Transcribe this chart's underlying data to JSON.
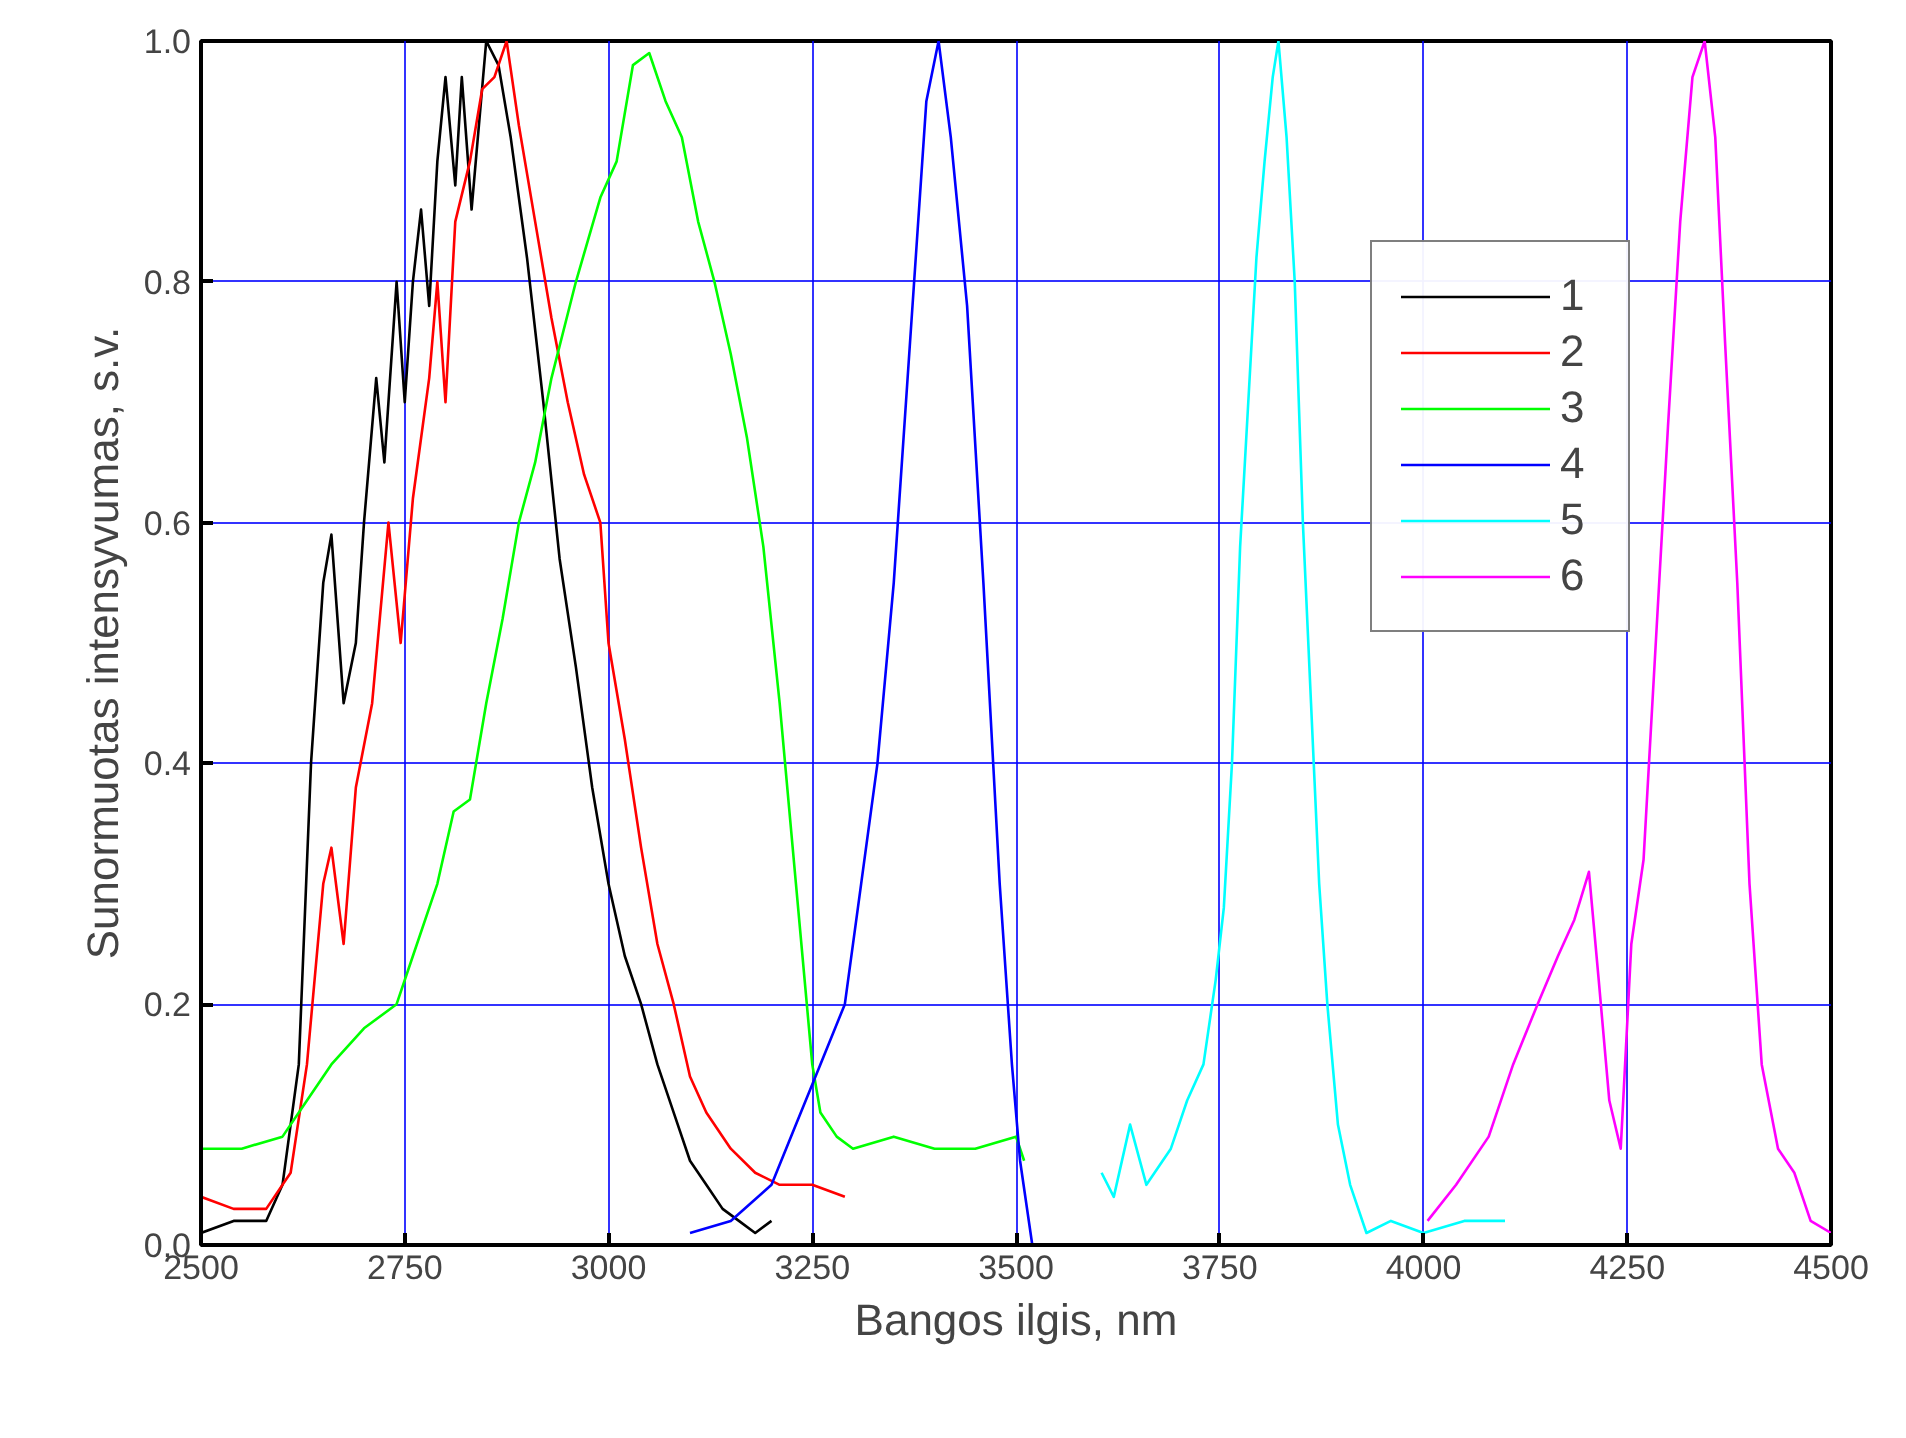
{
  "chart_data": {
    "type": "line",
    "xlabel": "Bangos ilgis, nm",
    "ylabel": "Sunormuotas intensyvumas, s.v.",
    "xlim": [
      2500,
      4500
    ],
    "ylim": [
      0,
      1.0
    ],
    "xticks": [
      2500,
      2750,
      3000,
      3250,
      3500,
      3750,
      4000,
      4250,
      4500
    ],
    "yticks": [
      {
        "value": 0,
        "label": "0.0"
      },
      {
        "value": 0.2,
        "label": "0.2"
      },
      {
        "value": 0.4,
        "label": "0.4"
      },
      {
        "value": 0.6,
        "label": "0.6"
      },
      {
        "value": 0.8,
        "label": "0.8"
      },
      {
        "value": 1.0,
        "label": "1.0"
      }
    ],
    "grid": true,
    "legend": "top right",
    "marker": "none",
    "line_style": "solid",
    "series": [
      {
        "name": "1",
        "color": "#000000",
        "x": [
          2500,
          2540,
          2580,
          2600,
          2620,
          2635,
          2650,
          2660,
          2675,
          2690,
          2700,
          2715,
          2725,
          2740,
          2750,
          2760,
          2770,
          2780,
          2790,
          2800,
          2812,
          2820,
          2832,
          2850,
          2865,
          2880,
          2900,
          2920,
          2940,
          2960,
          2980,
          3000,
          3020,
          3040,
          3060,
          3080,
          3100,
          3120,
          3140,
          3160,
          3180,
          3200
        ],
        "values": [
          0.01,
          0.02,
          0.02,
          0.05,
          0.15,
          0.4,
          0.55,
          0.59,
          0.45,
          0.5,
          0.6,
          0.72,
          0.65,
          0.8,
          0.7,
          0.8,
          0.86,
          0.78,
          0.9,
          0.97,
          0.88,
          0.97,
          0.86,
          1.0,
          0.98,
          0.92,
          0.82,
          0.7,
          0.57,
          0.48,
          0.38,
          0.3,
          0.24,
          0.2,
          0.15,
          0.11,
          0.07,
          0.05,
          0.03,
          0.02,
          0.01,
          0.02
        ]
      },
      {
        "name": "2",
        "color": "#ff0000",
        "x": [
          2500,
          2540,
          2580,
          2610,
          2630,
          2650,
          2660,
          2675,
          2690,
          2710,
          2730,
          2745,
          2760,
          2780,
          2790,
          2800,
          2812,
          2830,
          2845,
          2860,
          2875,
          2890,
          2910,
          2930,
          2950,
          2970,
          2990,
          3000,
          3020,
          3040,
          3060,
          3080,
          3100,
          3120,
          3150,
          3180,
          3210,
          3250,
          3290
        ],
        "values": [
          0.04,
          0.03,
          0.03,
          0.06,
          0.15,
          0.3,
          0.33,
          0.25,
          0.38,
          0.45,
          0.6,
          0.5,
          0.62,
          0.72,
          0.8,
          0.7,
          0.85,
          0.9,
          0.96,
          0.97,
          1.0,
          0.93,
          0.85,
          0.77,
          0.7,
          0.64,
          0.6,
          0.5,
          0.42,
          0.33,
          0.25,
          0.2,
          0.14,
          0.11,
          0.08,
          0.06,
          0.05,
          0.05,
          0.04
        ]
      },
      {
        "name": "3",
        "color": "#00ff00",
        "x": [
          2500,
          2550,
          2600,
          2630,
          2660,
          2700,
          2740,
          2760,
          2790,
          2810,
          2830,
          2850,
          2870,
          2890,
          2910,
          2930,
          2960,
          2990,
          3010,
          3030,
          3050,
          3070,
          3090,
          3110,
          3130,
          3150,
          3170,
          3190,
          3210,
          3230,
          3250,
          3260,
          3280,
          3300,
          3350,
          3400,
          3450,
          3500,
          3510
        ],
        "values": [
          0.08,
          0.08,
          0.09,
          0.12,
          0.15,
          0.18,
          0.2,
          0.24,
          0.3,
          0.36,
          0.37,
          0.45,
          0.52,
          0.6,
          0.65,
          0.72,
          0.8,
          0.87,
          0.9,
          0.98,
          0.99,
          0.95,
          0.92,
          0.85,
          0.8,
          0.74,
          0.67,
          0.58,
          0.45,
          0.3,
          0.15,
          0.11,
          0.09,
          0.08,
          0.09,
          0.08,
          0.08,
          0.09,
          0.07
        ]
      },
      {
        "name": "4",
        "color": "#0000ff",
        "x": [
          3100,
          3150,
          3200,
          3230,
          3260,
          3290,
          3310,
          3330,
          3350,
          3370,
          3390,
          3405,
          3420,
          3440,
          3460,
          3480,
          3495,
          3505,
          3520
        ],
        "values": [
          0.01,
          0.02,
          0.05,
          0.1,
          0.15,
          0.2,
          0.3,
          0.4,
          0.55,
          0.75,
          0.95,
          1.0,
          0.92,
          0.78,
          0.55,
          0.3,
          0.15,
          0.07,
          0.0
        ]
      },
      {
        "name": "5",
        "color": "#00ffff",
        "x": [
          3605,
          3620,
          3640,
          3660,
          3690,
          3710,
          3730,
          3745,
          3755,
          3765,
          3775,
          3785,
          3795,
          3805,
          3815,
          3822,
          3832,
          3842,
          3852,
          3862,
          3872,
          3882,
          3895,
          3910,
          3930,
          3960,
          4000,
          4050,
          4100
        ],
        "values": [
          0.06,
          0.04,
          0.1,
          0.05,
          0.08,
          0.12,
          0.15,
          0.22,
          0.28,
          0.4,
          0.58,
          0.7,
          0.82,
          0.9,
          0.97,
          1.0,
          0.92,
          0.8,
          0.6,
          0.45,
          0.3,
          0.2,
          0.1,
          0.05,
          0.01,
          0.02,
          0.01,
          0.02,
          0.02
        ]
      },
      {
        "name": "6",
        "color": "#ff00ff",
        "x": [
          4005,
          4040,
          4080,
          4110,
          4140,
          4165,
          4185,
          4203,
          4215,
          4228,
          4242,
          4255,
          4270,
          4285,
          4300,
          4315,
          4330,
          4345,
          4358,
          4370,
          4385,
          4400,
          4415,
          4435,
          4455,
          4475,
          4500
        ],
        "values": [
          0.02,
          0.05,
          0.09,
          0.15,
          0.2,
          0.24,
          0.27,
          0.31,
          0.22,
          0.12,
          0.08,
          0.25,
          0.32,
          0.5,
          0.68,
          0.85,
          0.97,
          1.0,
          0.92,
          0.75,
          0.55,
          0.3,
          0.15,
          0.08,
          0.06,
          0.02,
          0.01
        ]
      }
    ]
  }
}
